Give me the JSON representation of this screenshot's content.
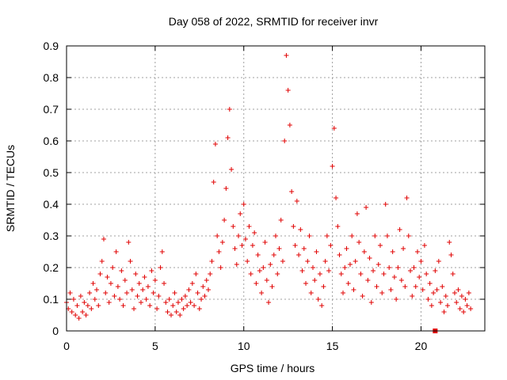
{
  "chart_data": {
    "type": "scatter",
    "title": "Day 058 of 2022, SRMTID for receiver invr",
    "xlabel": "GPS time / hours",
    "ylabel": "SRMTID / TECUs",
    "xlim": [
      0,
      23.6
    ],
    "ylim": [
      0,
      0.9
    ],
    "x_ticks": [
      0,
      5,
      10,
      15,
      20
    ],
    "y_ticks": [
      0,
      0.1,
      0.2,
      0.3,
      0.4,
      0.5,
      0.6,
      0.7,
      0.8,
      0.9
    ],
    "x_tick_labels": [
      "0",
      "5",
      "10",
      "15",
      "20"
    ],
    "y_tick_labels": [
      "0",
      "0.1",
      "0.2",
      "0.3",
      "0.4",
      "0.5",
      "0.6",
      "0.7",
      "0.8",
      "0.9"
    ],
    "grid": true,
    "marker": "+",
    "color": "#e00000",
    "series": [
      {
        "name": "SRMTID",
        "points": [
          [
            0.0,
            0.09
          ],
          [
            0.1,
            0.07
          ],
          [
            0.2,
            0.12
          ],
          [
            0.3,
            0.06
          ],
          [
            0.4,
            0.1
          ],
          [
            0.5,
            0.05
          ],
          [
            0.6,
            0.08
          ],
          [
            0.7,
            0.04
          ],
          [
            0.8,
            0.11
          ],
          [
            0.9,
            0.06
          ],
          [
            1.0,
            0.09
          ],
          [
            1.1,
            0.05
          ],
          [
            1.2,
            0.08
          ],
          [
            1.3,
            0.12
          ],
          [
            1.4,
            0.07
          ],
          [
            1.5,
            0.15
          ],
          [
            1.6,
            0.1
          ],
          [
            1.7,
            0.13
          ],
          [
            1.8,
            0.08
          ],
          [
            1.9,
            0.18
          ],
          [
            2.0,
            0.22
          ],
          [
            2.1,
            0.29
          ],
          [
            2.2,
            0.12
          ],
          [
            2.3,
            0.17
          ],
          [
            2.4,
            0.09
          ],
          [
            2.5,
            0.15
          ],
          [
            2.6,
            0.2
          ],
          [
            2.7,
            0.11
          ],
          [
            2.8,
            0.25
          ],
          [
            2.9,
            0.14
          ],
          [
            3.0,
            0.1
          ],
          [
            3.1,
            0.19
          ],
          [
            3.2,
            0.08
          ],
          [
            3.3,
            0.16
          ],
          [
            3.4,
            0.12
          ],
          [
            3.5,
            0.28
          ],
          [
            3.6,
            0.22
          ],
          [
            3.7,
            0.13
          ],
          [
            3.8,
            0.07
          ],
          [
            3.9,
            0.18
          ],
          [
            4.0,
            0.11
          ],
          [
            4.1,
            0.15
          ],
          [
            4.2,
            0.09
          ],
          [
            4.3,
            0.13
          ],
          [
            4.4,
            0.17
          ],
          [
            4.5,
            0.1
          ],
          [
            4.6,
            0.14
          ],
          [
            4.7,
            0.08
          ],
          [
            4.8,
            0.19
          ],
          [
            4.9,
            0.12
          ],
          [
            5.0,
            0.16
          ],
          [
            5.1,
            0.07
          ],
          [
            5.2,
            0.11
          ],
          [
            5.3,
            0.2
          ],
          [
            5.4,
            0.25
          ],
          [
            5.5,
            0.15
          ],
          [
            5.6,
            0.09
          ],
          [
            5.7,
            0.06
          ],
          [
            5.8,
            0.1
          ],
          [
            5.9,
            0.05
          ],
          [
            6.0,
            0.08
          ],
          [
            6.1,
            0.12
          ],
          [
            6.2,
            0.06
          ],
          [
            6.3,
            0.09
          ],
          [
            6.4,
            0.05
          ],
          [
            6.5,
            0.1
          ],
          [
            6.6,
            0.07
          ],
          [
            6.7,
            0.11
          ],
          [
            6.8,
            0.08
          ],
          [
            6.9,
            0.13
          ],
          [
            7.0,
            0.09
          ],
          [
            7.1,
            0.15
          ],
          [
            7.2,
            0.08
          ],
          [
            7.3,
            0.18
          ],
          [
            7.4,
            0.12
          ],
          [
            7.5,
            0.07
          ],
          [
            7.6,
            0.1
          ],
          [
            7.7,
            0.14
          ],
          [
            7.8,
            0.11
          ],
          [
            7.9,
            0.16
          ],
          [
            8.0,
            0.13
          ],
          [
            8.1,
            0.18
          ],
          [
            8.2,
            0.22
          ],
          [
            8.3,
            0.47
          ],
          [
            8.4,
            0.59
          ],
          [
            8.5,
            0.3
          ],
          [
            8.6,
            0.25
          ],
          [
            8.7,
            0.2
          ],
          [
            8.8,
            0.28
          ],
          [
            8.9,
            0.35
          ],
          [
            9.0,
            0.45
          ],
          [
            9.1,
            0.61
          ],
          [
            9.2,
            0.7
          ],
          [
            9.3,
            0.51
          ],
          [
            9.4,
            0.33
          ],
          [
            9.5,
            0.26
          ],
          [
            9.6,
            0.21
          ],
          [
            9.7,
            0.3
          ],
          [
            9.8,
            0.37
          ],
          [
            9.9,
            0.27
          ],
          [
            10.0,
            0.4
          ],
          [
            10.1,
            0.29
          ],
          [
            10.2,
            0.22
          ],
          [
            10.3,
            0.33
          ],
          [
            10.4,
            0.18
          ],
          [
            10.5,
            0.27
          ],
          [
            10.6,
            0.31
          ],
          [
            10.7,
            0.15
          ],
          [
            10.8,
            0.24
          ],
          [
            10.9,
            0.19
          ],
          [
            11.0,
            0.12
          ],
          [
            11.1,
            0.2
          ],
          [
            11.2,
            0.28
          ],
          [
            11.3,
            0.16
          ],
          [
            11.4,
            0.09
          ],
          [
            11.5,
            0.21
          ],
          [
            11.6,
            0.14
          ],
          [
            11.7,
            0.24
          ],
          [
            11.8,
            0.3
          ],
          [
            11.9,
            0.18
          ],
          [
            12.0,
            0.26
          ],
          [
            12.1,
            0.35
          ],
          [
            12.2,
            0.22
          ],
          [
            12.3,
            0.6
          ],
          [
            12.4,
            0.87
          ],
          [
            12.5,
            0.76
          ],
          [
            12.6,
            0.65
          ],
          [
            12.7,
            0.44
          ],
          [
            12.8,
            0.33
          ],
          [
            12.9,
            0.27
          ],
          [
            13.0,
            0.41
          ],
          [
            13.1,
            0.24
          ],
          [
            13.2,
            0.32
          ],
          [
            13.3,
            0.19
          ],
          [
            13.4,
            0.26
          ],
          [
            13.5,
            0.15
          ],
          [
            13.6,
            0.22
          ],
          [
            13.7,
            0.3
          ],
          [
            13.8,
            0.12
          ],
          [
            13.9,
            0.2
          ],
          [
            14.0,
            0.16
          ],
          [
            14.1,
            0.25
          ],
          [
            14.2,
            0.1
          ],
          [
            14.3,
            0.18
          ],
          [
            14.4,
            0.08
          ],
          [
            14.5,
            0.14
          ],
          [
            14.6,
            0.22
          ],
          [
            14.7,
            0.3
          ],
          [
            14.8,
            0.19
          ],
          [
            14.9,
            0.27
          ],
          [
            15.0,
            0.52
          ],
          [
            15.1,
            0.64
          ],
          [
            15.2,
            0.42
          ],
          [
            15.3,
            0.33
          ],
          [
            15.4,
            0.24
          ],
          [
            15.5,
            0.18
          ],
          [
            15.6,
            0.12
          ],
          [
            15.7,
            0.2
          ],
          [
            15.8,
            0.26
          ],
          [
            15.9,
            0.15
          ],
          [
            16.0,
            0.21
          ],
          [
            16.1,
            0.3
          ],
          [
            16.2,
            0.13
          ],
          [
            16.3,
            0.22
          ],
          [
            16.4,
            0.37
          ],
          [
            16.5,
            0.28
          ],
          [
            16.6,
            0.18
          ],
          [
            16.7,
            0.11
          ],
          [
            16.8,
            0.25
          ],
          [
            16.9,
            0.39
          ],
          [
            17.0,
            0.16
          ],
          [
            17.1,
            0.23
          ],
          [
            17.2,
            0.09
          ],
          [
            17.3,
            0.19
          ],
          [
            17.4,
            0.3
          ],
          [
            17.5,
            0.14
          ],
          [
            17.6,
            0.21
          ],
          [
            17.7,
            0.27
          ],
          [
            17.8,
            0.12
          ],
          [
            17.9,
            0.18
          ],
          [
            18.0,
            0.4
          ],
          [
            18.1,
            0.3
          ],
          [
            18.2,
            0.2
          ],
          [
            18.3,
            0.13
          ],
          [
            18.4,
            0.25
          ],
          [
            18.5,
            0.17
          ],
          [
            18.6,
            0.1
          ],
          [
            18.7,
            0.2
          ],
          [
            18.8,
            0.32
          ],
          [
            18.9,
            0.16
          ],
          [
            19.0,
            0.26
          ],
          [
            19.1,
            0.14
          ],
          [
            19.2,
            0.42
          ],
          [
            19.3,
            0.3
          ],
          [
            19.4,
            0.19
          ],
          [
            19.5,
            0.11
          ],
          [
            19.6,
            0.2
          ],
          [
            19.7,
            0.14
          ],
          [
            19.8,
            0.25
          ],
          [
            19.9,
            0.17
          ],
          [
            20.0,
            0.22
          ],
          [
            20.1,
            0.13
          ],
          [
            20.2,
            0.27
          ],
          [
            20.3,
            0.18
          ],
          [
            20.4,
            0.1
          ],
          [
            20.5,
            0.15
          ],
          [
            20.6,
            0.08
          ],
          [
            20.7,
            0.12
          ],
          [
            20.8,
            0.19
          ],
          [
            20.9,
            0.13
          ],
          [
            21.0,
            0.22
          ],
          [
            21.1,
            0.09
          ],
          [
            21.2,
            0.14
          ],
          [
            21.3,
            0.06
          ],
          [
            21.4,
            0.11
          ],
          [
            21.5,
            0.08
          ],
          [
            21.6,
            0.28
          ],
          [
            21.7,
            0.24
          ],
          [
            21.8,
            0.18
          ],
          [
            21.9,
            0.12
          ],
          [
            22.0,
            0.09
          ],
          [
            22.1,
            0.13
          ],
          [
            22.2,
            0.07
          ],
          [
            22.3,
            0.11
          ],
          [
            22.4,
            0.06
          ],
          [
            22.5,
            0.1
          ],
          [
            22.6,
            0.08
          ],
          [
            22.7,
            0.12
          ],
          [
            22.8,
            0.07
          ]
        ]
      }
    ],
    "outliers": [
      [
        20.8,
        0.0
      ]
    ]
  }
}
